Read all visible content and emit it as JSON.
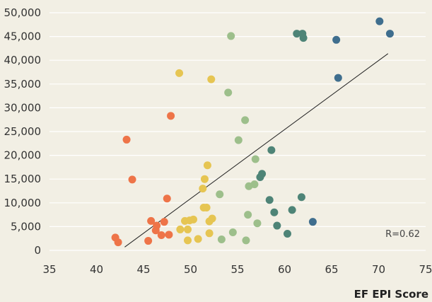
{
  "chart_data": {
    "type": "scatter",
    "title": "",
    "xlabel": "EF EPI Score",
    "ylabel": "",
    "xlim": [
      35,
      75
    ],
    "ylim": [
      0,
      50000
    ],
    "x_ticks": [
      35,
      40,
      45,
      50,
      55,
      60,
      65,
      70,
      75
    ],
    "x_tick_labels": [
      "35",
      "40",
      "45",
      "50",
      "55",
      "60",
      "65",
      "70",
      "75"
    ],
    "y_ticks": [
      0,
      5000,
      10000,
      15000,
      20000,
      25000,
      30000,
      35000,
      40000,
      45000,
      50000
    ],
    "y_tick_labels": [
      "0",
      "5,000",
      "10,000",
      "15,000",
      "20,000",
      "25,000",
      "30,000",
      "35,000",
      "40,000",
      "45,000",
      "50,000"
    ],
    "grid": "horizontal",
    "legend": "none",
    "annotation": "R=0.62",
    "trendline": {
      "x": [
        43,
        71
      ],
      "y": [
        700,
        41400
      ]
    },
    "colors": {
      "orange": "#ee7448",
      "yellow": "#e6c552",
      "green": "#9dbf8b",
      "teal": "#4e8477",
      "blue": "#3f6e8e",
      "trendline": "#222222",
      "background": "#f2efe4",
      "grid": "#ffffff"
    },
    "series": [
      {
        "color": "orange",
        "points": [
          {
            "x": 42.0,
            "y": 2700
          },
          {
            "x": 42.3,
            "y": 1700
          },
          {
            "x": 43.2,
            "y": 23300
          },
          {
            "x": 43.8,
            "y": 14900
          },
          {
            "x": 45.5,
            "y": 2000
          },
          {
            "x": 45.8,
            "y": 6200
          },
          {
            "x": 46.3,
            "y": 4200
          },
          {
            "x": 46.4,
            "y": 5200
          },
          {
            "x": 46.9,
            "y": 3200
          },
          {
            "x": 47.2,
            "y": 6000
          },
          {
            "x": 47.5,
            "y": 10900
          },
          {
            "x": 47.7,
            "y": 3300
          },
          {
            "x": 47.9,
            "y": 28300
          }
        ]
      },
      {
        "color": "yellow",
        "points": [
          {
            "x": 48.8,
            "y": 37300
          },
          {
            "x": 48.9,
            "y": 4400
          },
          {
            "x": 49.4,
            "y": 6200
          },
          {
            "x": 49.7,
            "y": 2100
          },
          {
            "x": 49.7,
            "y": 4400
          },
          {
            "x": 49.9,
            "y": 6300
          },
          {
            "x": 50.3,
            "y": 6500
          },
          {
            "x": 50.8,
            "y": 2400
          },
          {
            "x": 51.3,
            "y": 13000
          },
          {
            "x": 51.4,
            "y": 9000
          },
          {
            "x": 51.5,
            "y": 15000
          },
          {
            "x": 51.7,
            "y": 9000
          },
          {
            "x": 51.8,
            "y": 17900
          },
          {
            "x": 52.0,
            "y": 3600
          },
          {
            "x": 52.0,
            "y": 6100
          },
          {
            "x": 52.2,
            "y": 36000
          },
          {
            "x": 52.3,
            "y": 6700
          }
        ]
      },
      {
        "color": "green",
        "points": [
          {
            "x": 53.1,
            "y": 11800
          },
          {
            "x": 53.3,
            "y": 2300
          },
          {
            "x": 54.0,
            "y": 33200
          },
          {
            "x": 54.3,
            "y": 45100
          },
          {
            "x": 54.5,
            "y": 3800
          },
          {
            "x": 55.1,
            "y": 23200
          },
          {
            "x": 55.8,
            "y": 27400
          },
          {
            "x": 55.9,
            "y": 2100
          },
          {
            "x": 56.1,
            "y": 7500
          },
          {
            "x": 56.2,
            "y": 13500
          },
          {
            "x": 56.8,
            "y": 13900
          },
          {
            "x": 56.9,
            "y": 19200
          },
          {
            "x": 57.1,
            "y": 5700
          }
        ]
      },
      {
        "color": "teal",
        "points": [
          {
            "x": 57.4,
            "y": 15400
          },
          {
            "x": 57.6,
            "y": 16100
          },
          {
            "x": 58.4,
            "y": 10600
          },
          {
            "x": 58.6,
            "y": 21100
          },
          {
            "x": 58.9,
            "y": 8000
          },
          {
            "x": 59.2,
            "y": 5200
          },
          {
            "x": 60.3,
            "y": 3500
          },
          {
            "x": 60.8,
            "y": 8500
          },
          {
            "x": 61.3,
            "y": 45600
          },
          {
            "x": 61.8,
            "y": 11200
          },
          {
            "x": 61.9,
            "y": 45600
          },
          {
            "x": 62.0,
            "y": 44700
          }
        ]
      },
      {
        "color": "blue",
        "points": [
          {
            "x": 63.0,
            "y": 6000
          },
          {
            "x": 65.5,
            "y": 44300
          },
          {
            "x": 65.7,
            "y": 36300
          },
          {
            "x": 70.1,
            "y": 48200
          },
          {
            "x": 71.2,
            "y": 45600
          }
        ]
      }
    ]
  }
}
